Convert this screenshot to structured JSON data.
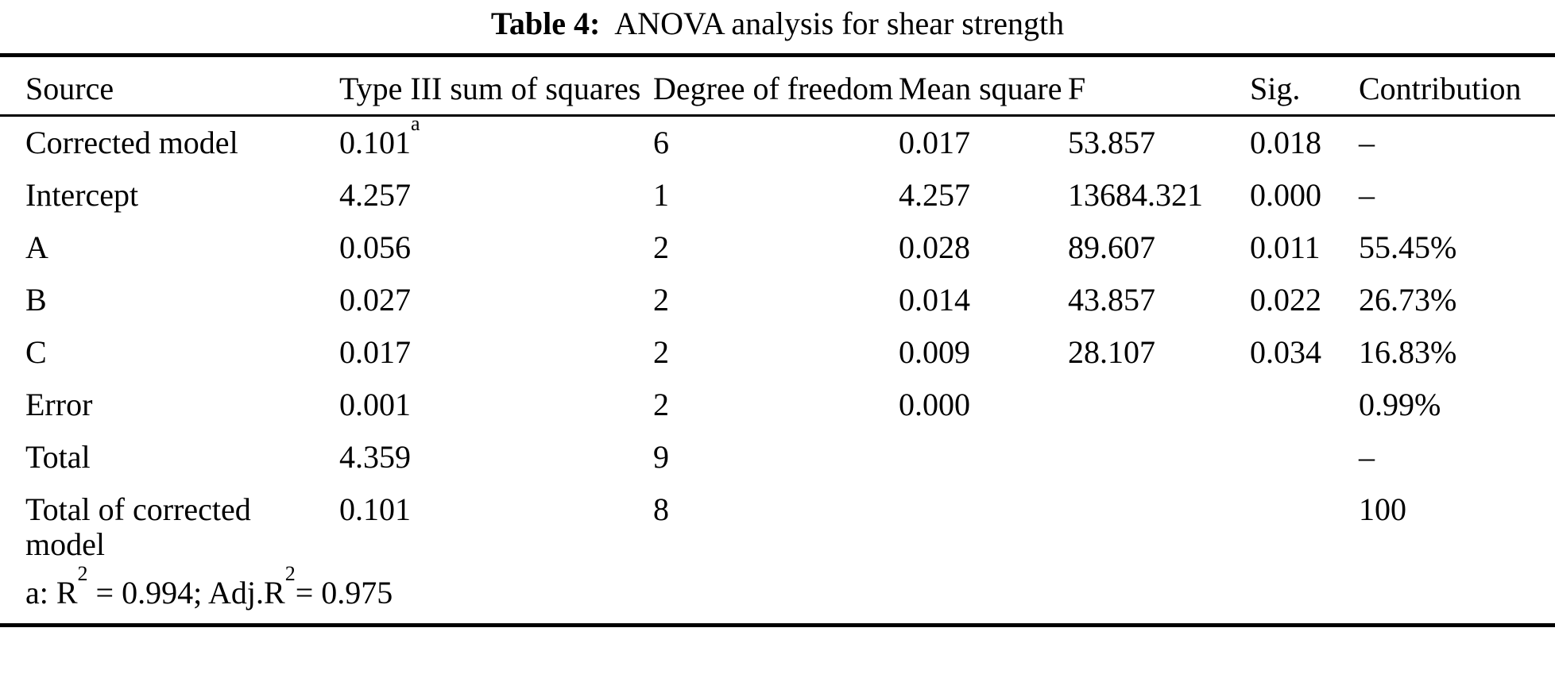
{
  "caption": {
    "label": "Table 4:",
    "text": "ANOVA analysis for shear strength"
  },
  "table": {
    "columns": [
      "Source",
      "Type III sum of squares",
      "Degree of freedom",
      "Mean square",
      "F",
      "Sig.",
      "Contribution"
    ],
    "rows": [
      {
        "source": "Corrected model",
        "sum_of_squares": "0.101",
        "sum_sq_sup": "a",
        "df": "6",
        "mean_square": "0.017",
        "f": "53.857",
        "sig": "0.018",
        "contribution": "–"
      },
      {
        "source": "Intercept",
        "sum_of_squares": "4.257",
        "df": "1",
        "mean_square": "4.257",
        "f": "13684.321",
        "sig": "0.000",
        "contribution": "–"
      },
      {
        "source": "A",
        "sum_of_squares": "0.056",
        "df": "2",
        "mean_square": "0.028",
        "f": "89.607",
        "sig": "0.011",
        "contribution": "55.45%"
      },
      {
        "source": "B",
        "sum_of_squares": "0.027",
        "df": "2",
        "mean_square": "0.014",
        "f": "43.857",
        "sig": "0.022",
        "contribution": "26.73%"
      },
      {
        "source": "C",
        "sum_of_squares": "0.017",
        "df": "2",
        "mean_square": "0.009",
        "f": "28.107",
        "sig": "0.034",
        "contribution": "16.83%"
      },
      {
        "source": "Error",
        "sum_of_squares": "0.001",
        "df": "2",
        "mean_square": "0.000",
        "f": "",
        "sig": "",
        "contribution": "0.99%"
      },
      {
        "source": "Total",
        "sum_of_squares": "4.359",
        "df": "9",
        "mean_square": "",
        "f": "",
        "sig": "",
        "contribution": "–"
      },
      {
        "source": "Total of corrected model",
        "sum_of_squares": "0.101",
        "df": "8",
        "mean_square": "",
        "f": "",
        "sig": "",
        "contribution": "100"
      }
    ],
    "footnote": {
      "prefix": "a: R",
      "sup1": "2",
      "mid": " = 0.994; Adj.R",
      "sup2": "2",
      "suffix": "= 0.975"
    }
  }
}
